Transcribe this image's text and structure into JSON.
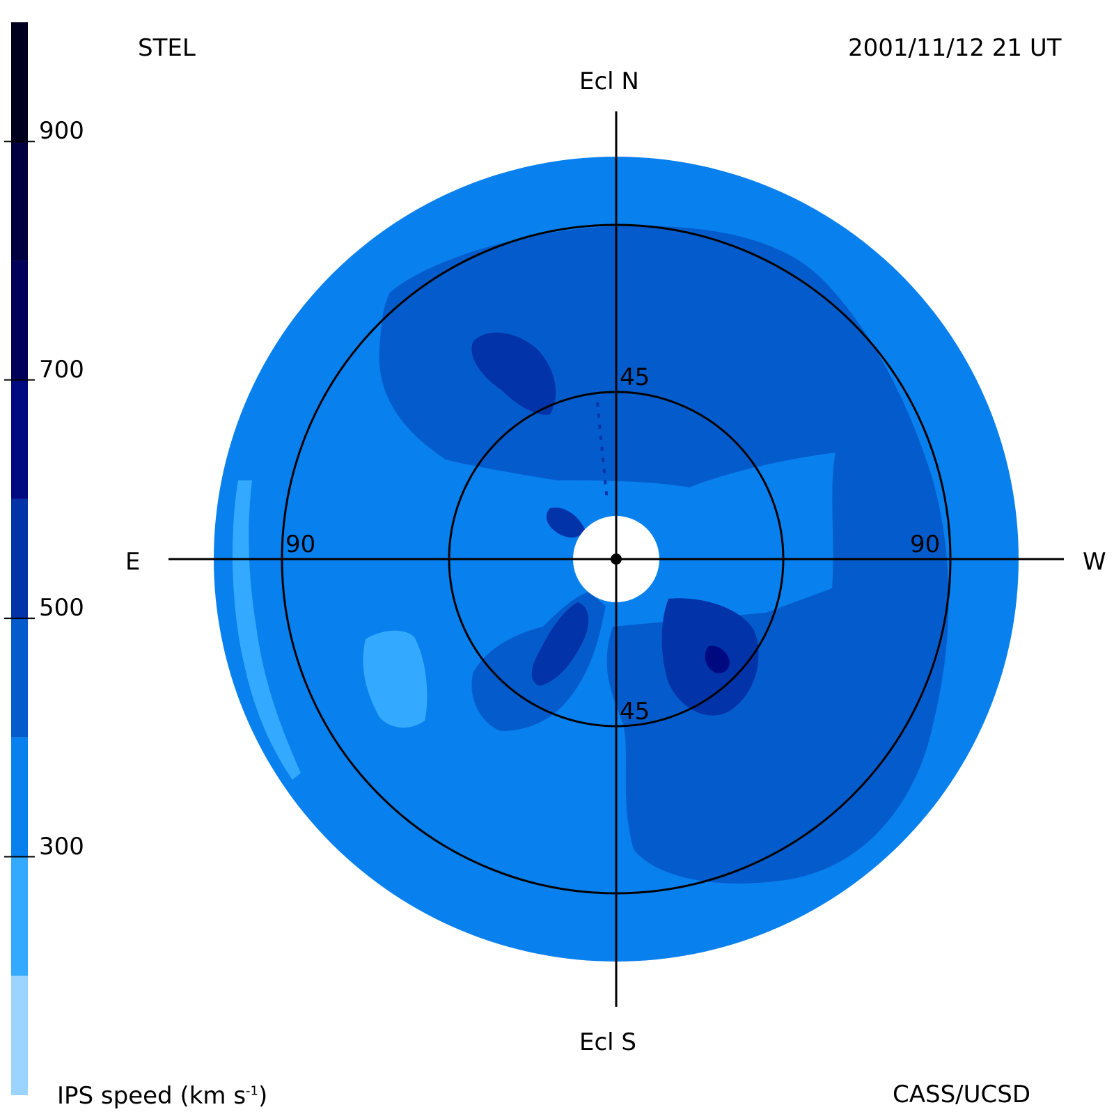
{
  "header": {
    "observatory": "STEL",
    "datetime": "2001/11/12 21 UT",
    "credit": "CASS/UCSD"
  },
  "colorbar": {
    "title": "IPS speed (km s",
    "title_sup": "-1",
    "title_close": ")",
    "ticks": [
      "900",
      "700",
      "500",
      "300"
    ],
    "bands": [
      {
        "from": 900,
        "to": 1000,
        "color": "#00001e"
      },
      {
        "from": 800,
        "to": 900,
        "color": "#000040"
      },
      {
        "from": 700,
        "to": 800,
        "color": "#000058"
      },
      {
        "from": 600,
        "to": 700,
        "color": "#000a80"
      },
      {
        "from": 500,
        "to": 600,
        "color": "#0233a8"
      },
      {
        "from": 400,
        "to": 500,
        "color": "#045ccc"
      },
      {
        "from": 300,
        "to": 400,
        "color": "#0880ee"
      },
      {
        "from": 200,
        "to": 300,
        "color": "#33aaff"
      },
      {
        "from": 100,
        "to": 200,
        "color": "#9ad4ff"
      }
    ]
  },
  "skymap": {
    "compass": {
      "north": "Ecl N",
      "south": "Ecl S",
      "east": "E",
      "west": "W"
    },
    "ring_labels": {
      "inner_top": "45",
      "inner_bottom": "45",
      "outer_left": "90",
      "outer_right": "90"
    },
    "colors": {
      "bg_level": "#0880ee",
      "mid_level": "#045ccc",
      "high_level": "#0233a8",
      "peak_level": "#000a80",
      "low_level": "#33aaff",
      "sun_disk": "#ffffff",
      "lines": "#000000"
    }
  }
}
